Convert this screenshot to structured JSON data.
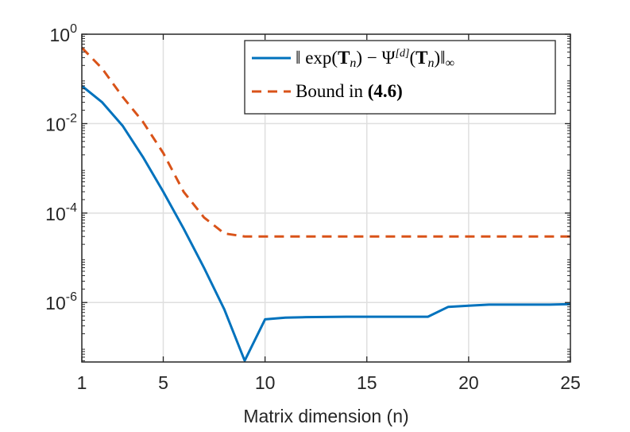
{
  "chart_data": {
    "type": "line",
    "title": "",
    "xlabel": "Matrix dimension (n)",
    "ylabel": "",
    "xscale": "linear",
    "yscale": "log",
    "xlim": [
      1,
      25
    ],
    "ylim_exp": [
      -7.33,
      0
    ],
    "grid": true,
    "legend_position": "top-right",
    "x_ticks": [
      1,
      5,
      10,
      15,
      20,
      25
    ],
    "x_tick_labels": [
      "1",
      "5",
      "10",
      "15",
      "20",
      "25"
    ],
    "y_ticks_exp": [
      0,
      -2,
      -4,
      -6
    ],
    "y_tick_labels": [
      {
        "base": "10",
        "exp": "0"
      },
      {
        "base": "10",
        "exp": "-2"
      },
      {
        "base": "10",
        "exp": "-4"
      },
      {
        "base": "10",
        "exp": "-6"
      }
    ],
    "series": [
      {
        "name": "‖ exp(Tₙ) − Ψ^[d](Tₙ)‖∞",
        "color": "#0072BD",
        "line_style": "solid",
        "x": [
          1,
          2,
          3,
          4,
          5,
          6,
          7,
          8,
          9,
          10,
          11,
          12,
          13,
          14,
          15,
          16,
          17,
          18,
          19,
          20,
          21,
          22,
          23,
          24,
          25
        ],
        "y": [
          0.07,
          0.03,
          0.009,
          0.0018,
          0.0003,
          4.5e-05,
          6e-06,
          7e-07,
          5e-08,
          4.2e-07,
          4.6e-07,
          4.7e-07,
          4.75e-07,
          4.8e-07,
          4.8e-07,
          4.8e-07,
          4.8e-07,
          4.8e-07,
          8e-07,
          8.5e-07,
          9e-07,
          9e-07,
          9e-07,
          9e-07,
          9.2e-07
        ]
      },
      {
        "name": "Bound in (4.6)",
        "color": "#D95319",
        "line_style": "dashed",
        "x": [
          1,
          2,
          3,
          4,
          5,
          6,
          7,
          8,
          9,
          10,
          11,
          12,
          13,
          14,
          15,
          16,
          17,
          18,
          19,
          20,
          21,
          22,
          23,
          24,
          25
        ],
        "y": [
          0.5,
          0.17,
          0.04,
          0.011,
          0.0022,
          0.0003,
          8e-05,
          3.5e-05,
          3e-05,
          3e-05,
          3e-05,
          3e-05,
          3e-05,
          3e-05,
          3e-05,
          3e-05,
          3e-05,
          3e-05,
          3e-05,
          3e-05,
          3e-05,
          3e-05,
          3e-05,
          3e-05,
          3e-05
        ]
      }
    ],
    "legend_entries": [
      {
        "series_index": 0,
        "parts": [
          {
            "t": "‖ exp(",
            "style": "normal"
          },
          {
            "t": "T",
            "style": "bold"
          },
          {
            "t": "n",
            "style": "sub-italic"
          },
          {
            "t": ") − Ψ",
            "style": "normal"
          },
          {
            "t": "[d]",
            "style": "sup"
          },
          {
            "t": "(",
            "style": "normal"
          },
          {
            "t": "T",
            "style": "bold"
          },
          {
            "t": "n",
            "style": "sub-italic"
          },
          {
            "t": ")‖",
            "style": "normal"
          },
          {
            "t": "∞",
            "style": "sub"
          }
        ]
      },
      {
        "series_index": 1,
        "parts": [
          {
            "t": "Bound in ",
            "style": "normal"
          },
          {
            "t": "(4.6)",
            "style": "bold"
          }
        ]
      }
    ]
  }
}
